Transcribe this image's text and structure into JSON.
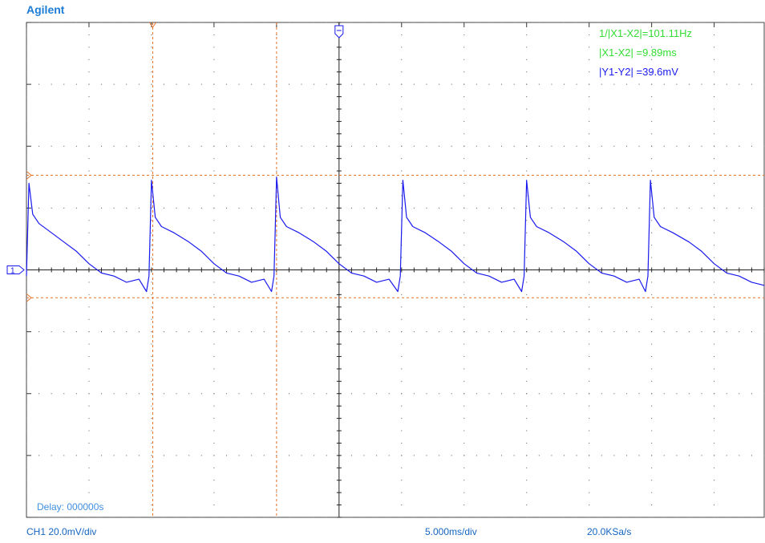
{
  "brand": "Agilent",
  "measurements": {
    "inv_dx": "1/|X1-X2|=101.11Hz",
    "dx": "|X1-X2|   =9.89ms",
    "dy": "|Y1-Y2|  =39.6mV"
  },
  "delay": "Delay: 000000s",
  "footer": {
    "channel": "CH1 20.0mV/div",
    "timebase": "5.000ms/div",
    "sample_rate": "20.0KSa/s"
  },
  "colors": {
    "trace": "#1a1aee",
    "cursor": "#e8742a",
    "grid": "#555555",
    "measure_x": "#33dd33",
    "measure_y": "#1a1aee",
    "brand": "#1c7cd6"
  },
  "markers": {
    "channel": "1",
    "trigger_icon": "trigger-marker-icon",
    "cursor_icon": "cursor-marker-icon"
  },
  "chart_data": {
    "type": "line",
    "x_unit": "ms",
    "y_unit": "mV",
    "xlim": [
      -25.0,
      34.0
    ],
    "ylim": [
      -80,
      80
    ],
    "x_div_ms": 5.0,
    "y_div_mV": 20.0,
    "grid": true,
    "cursors": {
      "x1_ms": -14.9,
      "x2_ms": -5.0,
      "y1_mV": 30.6,
      "y2_mV": -9.0
    },
    "series": [
      {
        "period_ms": 9.89,
        "peak_times_ms": [
          -24.8,
          -15.0,
          -5.0,
          5.1,
          15.0,
          24.9
        ],
        "x": [
          -25.0,
          -24.8,
          -24.5,
          -24.0,
          -23.0,
          -22.0,
          -21.0,
          -20.0,
          -19.0,
          -18.0,
          -17.0,
          -16.0,
          -15.4,
          -15.2,
          -15.0,
          -14.7,
          -14.2,
          -13.2,
          -12.0,
          -11.0,
          -10.0,
          -9.0,
          -8.0,
          -7.0,
          -6.0,
          -5.4,
          -5.2,
          -5.0,
          -4.7,
          -4.2,
          -3.2,
          -2.0,
          -1.0,
          0.0,
          1.0,
          2.0,
          3.0,
          4.0,
          4.7,
          4.9,
          5.1,
          5.4,
          5.9,
          6.9,
          8.0,
          9.0,
          10.0,
          11.0,
          12.0,
          13.0,
          14.0,
          14.6,
          14.8,
          15.0,
          15.3,
          15.8,
          16.8,
          18.0,
          19.0,
          20.0,
          21.0,
          22.0,
          23.0,
          24.0,
          24.5,
          24.7,
          24.9,
          25.2,
          25.7,
          26.7,
          28.0,
          29.0,
          30.0,
          31.0,
          32.0,
          33.0,
          34.0
        ],
        "y": [
          -2,
          28,
          18,
          15,
          12,
          9,
          6,
          2,
          -1,
          -2,
          -4,
          -3,
          -7,
          -2,
          29,
          17,
          14,
          12,
          9,
          6,
          2,
          -1,
          -2,
          -4,
          -3,
          -7,
          -2,
          30,
          17,
          14,
          12,
          9,
          6,
          2,
          -1,
          -2,
          -4,
          -3,
          -7,
          -2,
          29,
          17,
          14,
          12,
          9,
          6,
          2,
          -1,
          -2,
          -4,
          -3,
          -7,
          -2,
          29,
          17,
          14,
          12,
          9,
          6,
          2,
          -1,
          -2,
          -4,
          -3,
          -7,
          -2,
          29,
          17,
          14,
          12,
          9,
          6,
          2,
          -1,
          -2,
          -4,
          -5
        ]
      }
    ]
  }
}
